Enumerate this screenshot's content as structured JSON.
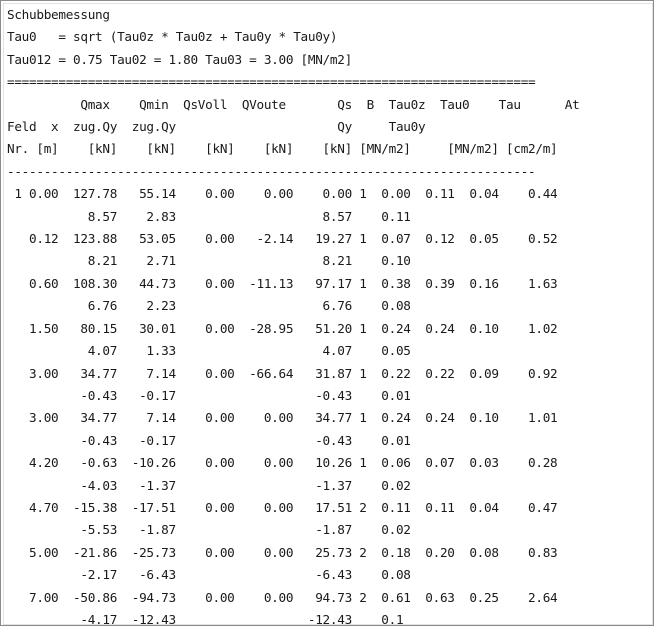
{
  "lines": [
    "Schubbemessung",
    "Tau0   = sqrt (Tau0z * Tau0z + Tau0y * Tau0y)",
    "Tau012 = 0.75 Tau02 = 1.80 Tau03 = 3.00 [MN/m2]",
    "========================================================================",
    "          Qmax    Qmin  QsVoll  QVoute       Qs  B  Tau0z  Tau0    Tau      At",
    "Feld  x  zug.Qy  zug.Qy                      Qy     Tau0y",
    "Nr. [m]    [kN]    [kN]    [kN]    [kN]    [kN] [MN/m2]     [MN/m2] [cm2/m]",
    "------------------------------------------------------------------------",
    " 1 0.00  127.78   55.14    0.00    0.00    0.00 1  0.00  0.11  0.04    0.44",
    "           8.57    2.83                    8.57    0.11",
    "   0.12  123.88   53.05    0.00   -2.14   19.27 1  0.07  0.12  0.05    0.52",
    "           8.21    2.71                    8.21    0.10",
    "   0.60  108.30   44.73    0.00  -11.13   97.17 1  0.38  0.39  0.16    1.63",
    "           6.76    2.23                    6.76    0.08",
    "   1.50   80.15   30.01    0.00  -28.95   51.20 1  0.24  0.24  0.10    1.02",
    "           4.07    1.33                    4.07    0.05",
    "   3.00   34.77    7.14    0.00  -66.64   31.87 1  0.22  0.22  0.09    0.92",
    "          -0.43   -0.17                   -0.43    0.01",
    "   3.00   34.77    7.14    0.00    0.00   34.77 1  0.24  0.24  0.10    1.01",
    "          -0.43   -0.17                   -0.43    0.01",
    "   4.20   -0.63  -10.26    0.00    0.00   10.26 1  0.06  0.07  0.03    0.28",
    "          -4.03   -1.37                   -1.37    0.02",
    "   4.70  -15.38  -17.51    0.00    0.00   17.51 2  0.11  0.11  0.04    0.47",
    "          -5.53   -1.87                   -1.87    0.02",
    "   5.00  -21.86  -25.73    0.00    0.00   25.73 2  0.18  0.20  0.08    0.83",
    "          -2.17   -6.43                   -6.43    0.08",
    "   7.00  -50.86  -94.73    0.00    0.00   94.73 2  0.61  0.63  0.25    2.64",
    "          -4.17  -12.43                  -12.43    0.1"
  ]
}
